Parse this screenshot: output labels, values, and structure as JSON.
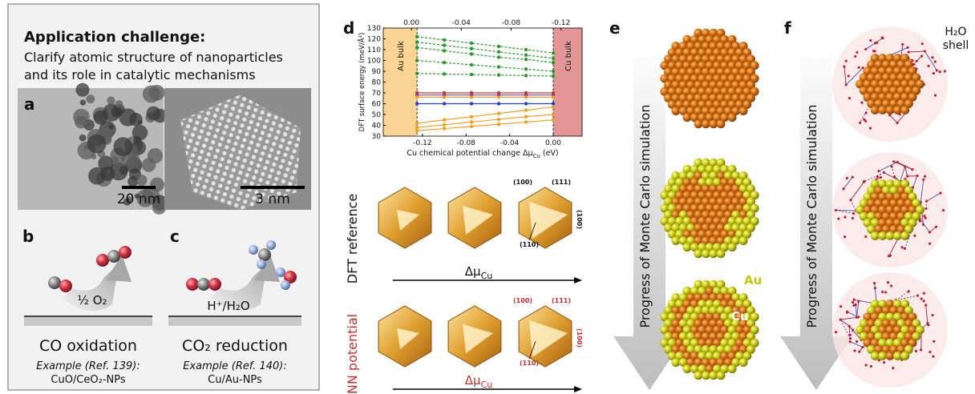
{
  "figure": {
    "left_panel": {
      "title": "Application challenge:",
      "lines": [
        "Clarify atomic structure of nanoparticles",
        "and its role in catalytic mechanisms"
      ],
      "a": {
        "letter": "a",
        "scale_bars": [
          "20 nm",
          "3 nm"
        ]
      },
      "b": {
        "letter": "b",
        "reagent": "½ O₂",
        "reaction": "CO oxidation",
        "example": "Example (Ref. 139):",
        "material": "CuO/CeO₂-NPs"
      },
      "c": {
        "letter": "c",
        "reagent": "H⁺/H₂O",
        "reaction": "CO₂ reduction",
        "example": "Example (Ref. 140):",
        "material": "Cu/Au-NPs"
      }
    },
    "d": {
      "letter": "d",
      "rows": [
        {
          "label": "DFT reference",
          "facets": [
            "(100)",
            "(111)",
            "(100)",
            "(110)"
          ],
          "axis_symbol": "Δμ",
          "axis_sub": "Cu"
        },
        {
          "label": "NN potential",
          "facets": [
            "(100)",
            "(111)",
            "(100)",
            "(110)"
          ],
          "axis_symbol": "Δμ",
          "axis_sub": "Cu"
        }
      ]
    },
    "e": {
      "letter": "e",
      "arrow_label": "Progress of Monte Carlo simulation",
      "labels": [
        "Au",
        "Cu"
      ]
    },
    "f": {
      "letter": "f",
      "arrow_label": "Progress of Monte Carlo simulation",
      "shell_label": [
        "H₂O",
        "shell"
      ]
    }
  },
  "chart_data": {
    "type": "line",
    "ylabel": "DFT surface energy (meV/Å²)",
    "xlabel": "Cu chemical potential change Δμ",
    "xlabel_sub": "Cu",
    "xlabel_unit": "(eV)",
    "xlim": [
      -0.156,
      0.0265
    ],
    "xticks": [
      -0.12,
      -0.08,
      -0.04,
      {
        "value": 0,
        "label": "0.00"
      }
    ],
    "x2lim": [
      0.0226,
      -0.137
    ],
    "x2ticks": [
      {
        "value": 0,
        "label": "0.00"
      },
      -0.04,
      -0.08,
      -0.12
    ],
    "ylim": [
      30,
      130
    ],
    "yticks": [
      30,
      40,
      50,
      60,
      70,
      80,
      90,
      100,
      110,
      120,
      130
    ],
    "regions": [
      {
        "label": "Au bulk",
        "from": -0.156,
        "to": -0.125,
        "color": "#f7c266"
      },
      {
        "label": "Cu bulk",
        "from": 0,
        "to": 0.0265,
        "color": "#d86a6a"
      }
    ],
    "x": [
      -0.125,
      -0.1,
      -0.075,
      -0.05,
      -0.025,
      0
    ],
    "series": [
      {
        "color": "#2a9a2a",
        "dashed": true,
        "values": [
          122,
          119,
          116,
          113,
          110,
          107
        ]
      },
      {
        "color": "#2a9a2a",
        "dashed": true,
        "values": [
          117,
          114,
          111,
          108,
          105,
          102
        ]
      },
      {
        "color": "#2a9a2a",
        "dashed": true,
        "values": [
          112,
          109,
          106,
          103,
          101,
          98
        ]
      },
      {
        "color": "#2a9a2a",
        "dashed": true,
        "values": [
          100,
          98,
          96,
          94,
          92,
          90
        ]
      },
      {
        "color": "#2a9a2a",
        "dashed": true,
        "values": [
          88,
          87.5,
          87,
          86.5,
          86,
          85.5
        ]
      },
      {
        "color": "#d03030",
        "dashed": false,
        "values": [
          70,
          70,
          70,
          70,
          70,
          70
        ]
      },
      {
        "color": "#8040a0",
        "dashed": false,
        "values": [
          68,
          68,
          68,
          68,
          68,
          68
        ]
      },
      {
        "color": "#2040d0",
        "dashed": false,
        "values": [
          60,
          60,
          60,
          60,
          60,
          60
        ]
      },
      {
        "color": "#f0a020",
        "dashed": false,
        "values": [
          66,
          66,
          66,
          66,
          66,
          66
        ]
      },
      {
        "color": "#f0a020",
        "dashed": false,
        "values": [
          35,
          37,
          39,
          41,
          43,
          45
        ]
      },
      {
        "color": "#f0a020",
        "dashed": false,
        "values": [
          38,
          40.5,
          43,
          45.5,
          48,
          50
        ]
      },
      {
        "color": "#f0a020",
        "dashed": false,
        "values": [
          42,
          45,
          48,
          51,
          54,
          57
        ]
      }
    ]
  }
}
